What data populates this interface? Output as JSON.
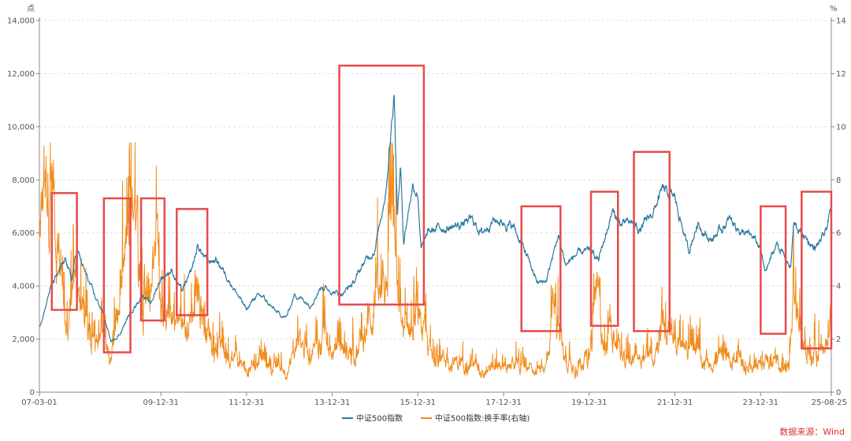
{
  "chart_data": {
    "type": "line",
    "left_axis": {
      "unit": "点",
      "ylim": [
        0,
        14000
      ],
      "ticks": [
        "0",
        "2,000",
        "4,000",
        "6,000",
        "8,000",
        "10,000",
        "12,000",
        "14,000"
      ]
    },
    "right_axis": {
      "unit": "%",
      "ylim": [
        0,
        14
      ],
      "ticks": [
        "0",
        "2",
        "4",
        "6",
        "8",
        "10",
        "12",
        "14"
      ]
    },
    "x_ticks": [
      "07-03-01",
      "09-12-31",
      "11-12-31",
      "13-12-31",
      "15-12-31",
      "17-12-31",
      "19-12-31",
      "21-12-31",
      "23-12-31",
      "25-08-25"
    ],
    "x_tick_dates": [
      "2007-03-01",
      "2009-12-31",
      "2011-12-31",
      "2013-12-31",
      "2015-12-31",
      "2017-12-31",
      "2019-12-31",
      "2021-12-31",
      "2023-12-31",
      "2025-08-25"
    ],
    "x_range": [
      "2007-03-01",
      "2025-08-25"
    ],
    "grid": "horizontal dashed",
    "legend_position": "bottom-center",
    "series": [
      {
        "name": "中证500指数",
        "axis": "left",
        "color": "#2a7aa0",
        "points": [
          [
            "2007-03-01",
            2450
          ],
          [
            "2007-06-01",
            3900
          ],
          [
            "2007-10-15",
            5000
          ],
          [
            "2007-11-30",
            4200
          ],
          [
            "2008-01-15",
            5400
          ],
          [
            "2008-03-15",
            4600
          ],
          [
            "2008-06-15",
            3600
          ],
          [
            "2008-08-15",
            3100
          ],
          [
            "2008-10-31",
            1900
          ],
          [
            "2008-11-30",
            2000
          ],
          [
            "2009-01-15",
            2200
          ],
          [
            "2009-04-15",
            3000
          ],
          [
            "2009-07-31",
            3700
          ],
          [
            "2009-09-30",
            3300
          ],
          [
            "2009-12-31",
            4300
          ],
          [
            "2010-03-31",
            4600
          ],
          [
            "2010-06-30",
            3800
          ],
          [
            "2010-09-15",
            4500
          ],
          [
            "2010-11-10",
            5500
          ],
          [
            "2011-01-31",
            4900
          ],
          [
            "2011-04-15",
            5000
          ],
          [
            "2011-06-30",
            4500
          ],
          [
            "2011-09-30",
            3800
          ],
          [
            "2011-12-31",
            3100
          ],
          [
            "2012-03-15",
            3600
          ],
          [
            "2012-05-15",
            3600
          ],
          [
            "2012-07-31",
            3200
          ],
          [
            "2012-09-15",
            3000
          ],
          [
            "2012-12-03",
            2800
          ],
          [
            "2013-02-15",
            3700
          ],
          [
            "2013-06-25",
            3300
          ],
          [
            "2013-09-30",
            4000
          ],
          [
            "2013-12-31",
            3800
          ],
          [
            "2014-03-15",
            3700
          ],
          [
            "2014-06-30",
            4100
          ],
          [
            "2014-09-30",
            4900
          ],
          [
            "2014-12-31",
            5400
          ],
          [
            "2015-03-31",
            7600
          ],
          [
            "2015-05-10",
            9500
          ],
          [
            "2015-06-12",
            11500
          ],
          [
            "2015-07-08",
            6700
          ],
          [
            "2015-08-05",
            8500
          ],
          [
            "2015-08-31",
            5700
          ],
          [
            "2015-11-15",
            7800
          ],
          [
            "2015-12-31",
            7500
          ],
          [
            "2016-01-28",
            5400
          ],
          [
            "2016-03-31",
            6000
          ],
          [
            "2016-06-30",
            6200
          ],
          [
            "2016-09-30",
            6200
          ],
          [
            "2016-12-31",
            6300
          ],
          [
            "2017-03-31",
            6500
          ],
          [
            "2017-06-30",
            6000
          ],
          [
            "2017-09-30",
            6500
          ],
          [
            "2017-12-31",
            6400
          ],
          [
            "2018-03-31",
            6200
          ],
          [
            "2018-06-30",
            5300
          ],
          [
            "2018-10-18",
            4100
          ],
          [
            "2018-12-31",
            4200
          ],
          [
            "2019-04-10",
            5900
          ],
          [
            "2019-06-15",
            4800
          ],
          [
            "2019-09-15",
            5200
          ],
          [
            "2019-12-31",
            5300
          ],
          [
            "2020-03-20",
            5000
          ],
          [
            "2020-07-15",
            6800
          ],
          [
            "2020-09-30",
            6300
          ],
          [
            "2020-12-31",
            6400
          ],
          [
            "2021-03-10",
            6100
          ],
          [
            "2021-06-30",
            6800
          ],
          [
            "2021-09-15",
            7600
          ],
          [
            "2021-12-31",
            7300
          ],
          [
            "2022-04-27",
            5300
          ],
          [
            "2022-07-15",
            6400
          ],
          [
            "2022-10-31",
            5700
          ],
          [
            "2022-12-31",
            6000
          ],
          [
            "2023-04-15",
            6500
          ],
          [
            "2023-07-31",
            6000
          ],
          [
            "2023-10-31",
            5800
          ],
          [
            "2023-12-31",
            5400
          ],
          [
            "2024-02-05",
            4500
          ],
          [
            "2024-05-20",
            5600
          ],
          [
            "2024-09-13",
            4700
          ],
          [
            "2024-10-08",
            6300
          ],
          [
            "2024-12-31",
            5900
          ],
          [
            "2025-04-08",
            5400
          ],
          [
            "2025-06-30",
            5900
          ],
          [
            "2025-08-25",
            6900
          ]
        ]
      },
      {
        "name": "中证500指数:换手率(右轴)",
        "axis": "right",
        "color": "#f08c1c",
        "points": [
          [
            "2007-03-01",
            5.5
          ],
          [
            "2007-05-30",
            9.3
          ],
          [
            "2007-08-31",
            4.5
          ],
          [
            "2007-10-31",
            2.5
          ],
          [
            "2008-01-15",
            4.5
          ],
          [
            "2008-03-31",
            2.5
          ],
          [
            "2008-06-30",
            2.0
          ],
          [
            "2008-09-30",
            1.5
          ],
          [
            "2008-12-31",
            2.5
          ],
          [
            "2009-02-28",
            4.5
          ],
          [
            "2009-04-15",
            6.0
          ],
          [
            "2009-06-30",
            4.5
          ],
          [
            "2009-08-15",
            3.5
          ],
          [
            "2009-11-30",
            5.3
          ],
          [
            "2009-12-31",
            3.5
          ],
          [
            "2010-03-31",
            3.0
          ],
          [
            "2010-06-30",
            2.3
          ],
          [
            "2010-09-30",
            3.0
          ],
          [
            "2010-11-15",
            3.8
          ],
          [
            "2011-01-31",
            2.4
          ],
          [
            "2011-04-15",
            2.0
          ],
          [
            "2011-06-30",
            1.4
          ],
          [
            "2011-09-30",
            1.1
          ],
          [
            "2011-12-31",
            0.8
          ],
          [
            "2012-03-31",
            1.3
          ],
          [
            "2012-06-30",
            1.1
          ],
          [
            "2012-09-30",
            0.8
          ],
          [
            "2012-12-31",
            0.9
          ],
          [
            "2013-03-31",
            1.9
          ],
          [
            "2013-06-30",
            1.3
          ],
          [
            "2013-09-30",
            2.4
          ],
          [
            "2013-12-31",
            1.4
          ],
          [
            "2014-03-31",
            1.6
          ],
          [
            "2014-06-30",
            1.5
          ],
          [
            "2014-09-30",
            2.2
          ],
          [
            "2014-12-31",
            3.5
          ],
          [
            "2015-02-28",
            3.0
          ],
          [
            "2015-04-30",
            5.5
          ],
          [
            "2015-06-10",
            6.1
          ],
          [
            "2015-07-15",
            3.0
          ],
          [
            "2015-09-30",
            2.0
          ],
          [
            "2015-11-30",
            3.2
          ],
          [
            "2015-12-31",
            2.4
          ],
          [
            "2016-03-31",
            1.6
          ],
          [
            "2016-06-30",
            1.4
          ],
          [
            "2016-09-30",
            1.2
          ],
          [
            "2016-12-31",
            1.1
          ],
          [
            "2017-03-31",
            1.2
          ],
          [
            "2017-06-30",
            0.8
          ],
          [
            "2017-09-30",
            1.0
          ],
          [
            "2017-12-31",
            0.9
          ],
          [
            "2018-03-31",
            1.2
          ],
          [
            "2018-06-30",
            0.9
          ],
          [
            "2018-09-30",
            0.8
          ],
          [
            "2018-12-31",
            1.0
          ],
          [
            "2019-03-05",
            3.6
          ],
          [
            "2019-05-31",
            1.3
          ],
          [
            "2019-09-30",
            1.1
          ],
          [
            "2019-12-31",
            1.3
          ],
          [
            "2020-02-28",
            3.5
          ],
          [
            "2020-05-31",
            1.5
          ],
          [
            "2020-07-15",
            2.3
          ],
          [
            "2020-09-30",
            1.3
          ],
          [
            "2020-12-31",
            1.2
          ],
          [
            "2021-03-31",
            1.4
          ],
          [
            "2021-06-30",
            1.5
          ],
          [
            "2021-09-10",
            2.7
          ],
          [
            "2021-12-31",
            1.7
          ],
          [
            "2022-03-31",
            1.6
          ],
          [
            "2022-06-30",
            1.4
          ],
          [
            "2022-09-30",
            1.2
          ],
          [
            "2022-12-31",
            1.2
          ],
          [
            "2023-03-31",
            1.3
          ],
          [
            "2023-06-30",
            1.1
          ],
          [
            "2023-09-30",
            1.0
          ],
          [
            "2023-12-31",
            0.9
          ],
          [
            "2024-02-28",
            1.3
          ],
          [
            "2024-05-20",
            1.2
          ],
          [
            "2024-08-31",
            0.8
          ],
          [
            "2024-10-08",
            4.3
          ],
          [
            "2024-11-30",
            2.2
          ],
          [
            "2024-12-31",
            1.6
          ],
          [
            "2025-03-31",
            1.7
          ],
          [
            "2025-04-08",
            2.3
          ],
          [
            "2025-06-30",
            1.4
          ],
          [
            "2025-08-25",
            2.9
          ]
        ]
      }
    ],
    "highlight_boxes": [
      {
        "from": "2007-06-15",
        "to": "2008-01-15",
        "y_from": 3100,
        "y_to": 7500
      },
      {
        "from": "2008-09-01",
        "to": "2009-04-15",
        "y_from": 1500,
        "y_to": 7300
      },
      {
        "from": "2009-07-15",
        "to": "2010-01-31",
        "y_from": 2700,
        "y_to": 7300
      },
      {
        "from": "2010-05-15",
        "to": "2011-01-31",
        "y_from": 2900,
        "y_to": 6900
      },
      {
        "from": "2014-03-01",
        "to": "2016-02-20",
        "y_from": 3300,
        "y_to": 12300
      },
      {
        "from": "2018-06-01",
        "to": "2019-04-30",
        "y_from": 2300,
        "y_to": 7000
      },
      {
        "from": "2020-01-15",
        "to": "2020-09-01",
        "y_from": 2500,
        "y_to": 7550
      },
      {
        "from": "2021-01-15",
        "to": "2021-11-15",
        "y_from": 2300,
        "y_to": 9050
      },
      {
        "from": "2024-01-01",
        "to": "2024-08-01",
        "y_from": 2200,
        "y_to": 7000
      },
      {
        "from": "2024-12-15",
        "to": "2025-08-25",
        "y_from": 1650,
        "y_to": 7550
      }
    ],
    "highlight_color": "#e84a4a"
  },
  "source_text": "数据来源：Wind"
}
